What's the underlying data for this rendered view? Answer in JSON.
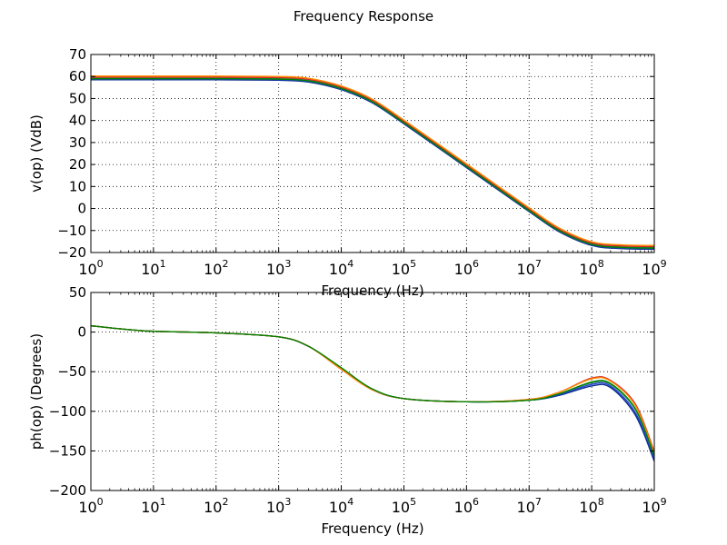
{
  "figure": {
    "title": "Frequency Response"
  },
  "chart_data": [
    {
      "type": "line",
      "title": "",
      "xlabel": "Frequency (Hz)",
      "ylabel": "v(op) (VdB)",
      "xscale": "log",
      "xlim": [
        1,
        1000000000
      ],
      "ylim": [
        -20,
        70
      ],
      "grid": true,
      "xticks": [
        {
          "base": "10",
          "exp": "0"
        },
        {
          "base": "10",
          "exp": "1"
        },
        {
          "base": "10",
          "exp": "2"
        },
        {
          "base": "10",
          "exp": "3"
        },
        {
          "base": "10",
          "exp": "4"
        },
        {
          "base": "10",
          "exp": "5"
        },
        {
          "base": "10",
          "exp": "6"
        },
        {
          "base": "10",
          "exp": "7"
        },
        {
          "base": "10",
          "exp": "8"
        },
        {
          "base": "10",
          "exp": "9"
        }
      ],
      "yticks": [
        "70",
        "60",
        "50",
        "40",
        "30",
        "20",
        "10",
        "0",
        "−10",
        "−20"
      ],
      "x": [
        1,
        10,
        100,
        1000,
        3000,
        10000,
        30000,
        100000,
        1000000,
        10000000,
        30000000,
        100000000,
        300000000,
        1000000000
      ],
      "series": [
        {
          "color": "#0a2a8c",
          "values": [
            58.5,
            58.5,
            58.5,
            58.3,
            57.5,
            54.0,
            48.3,
            38.5,
            18.6,
            -1.4,
            -10.5,
            -16.8,
            -18.2,
            -18.5
          ]
        },
        {
          "color": "#1f3fd1",
          "values": [
            58.8,
            58.8,
            58.8,
            58.6,
            57.8,
            54.3,
            48.6,
            38.8,
            18.9,
            -1.1,
            -10.2,
            -16.5,
            -17.9,
            -18.2
          ]
        },
        {
          "color": "#2e8b57",
          "values": [
            59.2,
            59.2,
            59.2,
            59.0,
            58.2,
            54.7,
            49.0,
            39.2,
            19.3,
            -0.7,
            -9.8,
            -16.1,
            -17.5,
            -17.8
          ]
        },
        {
          "color": "#d62728",
          "values": [
            59.7,
            59.7,
            59.7,
            59.5,
            58.7,
            55.2,
            49.5,
            39.7,
            19.8,
            -0.2,
            -9.3,
            -15.6,
            -17.0,
            -17.3
          ]
        },
        {
          "color": "#ff8c00",
          "values": [
            60.2,
            60.2,
            60.2,
            60.0,
            59.2,
            55.7,
            50.0,
            40.2,
            20.3,
            0.3,
            -8.8,
            -15.1,
            -16.5,
            -16.8
          ]
        },
        {
          "color": "#008000",
          "values": [
            59.0,
            59.0,
            59.0,
            58.8,
            58.0,
            54.5,
            48.8,
            39.0,
            19.1,
            -0.9,
            -10.0,
            -16.3,
            -17.7,
            -18.0
          ]
        }
      ]
    },
    {
      "type": "line",
      "title": "",
      "xlabel": "Frequency (Hz)",
      "ylabel": "ph(op) (Degrees)",
      "xscale": "log",
      "xlim": [
        1,
        1000000000
      ],
      "ylim": [
        -200,
        50
      ],
      "grid": true,
      "xticks": [
        {
          "base": "10",
          "exp": "0"
        },
        {
          "base": "10",
          "exp": "1"
        },
        {
          "base": "10",
          "exp": "2"
        },
        {
          "base": "10",
          "exp": "3"
        },
        {
          "base": "10",
          "exp": "4"
        },
        {
          "base": "10",
          "exp": "5"
        },
        {
          "base": "10",
          "exp": "6"
        },
        {
          "base": "10",
          "exp": "7"
        },
        {
          "base": "10",
          "exp": "8"
        },
        {
          "base": "10",
          "exp": "9"
        }
      ],
      "yticks": [
        "50",
        "0",
        "−50",
        "−100",
        "−150",
        "−200"
      ],
      "x": [
        1,
        3,
        10,
        100,
        1000,
        3000,
        10000,
        30000,
        100000,
        1000000,
        10000000,
        30000000,
        100000000,
        200000000,
        500000000,
        1000000000
      ],
      "series": [
        {
          "color": "#0a2a8c",
          "values": [
            8,
            4,
            1,
            -1,
            -6,
            -18,
            -46,
            -72,
            -84,
            -88,
            -86,
            -80,
            -68,
            -70,
            -105,
            -163
          ]
        },
        {
          "color": "#1f3fd1",
          "values": [
            8,
            4,
            1,
            -1,
            -6,
            -18,
            -46,
            -72,
            -84,
            -88,
            -86,
            -79,
            -66,
            -68,
            -102,
            -160
          ]
        },
        {
          "color": "#2e8b57",
          "values": [
            8,
            4,
            1,
            -1,
            -6,
            -18,
            -46,
            -72,
            -84,
            -88,
            -86,
            -78,
            -64,
            -66,
            -98,
            -157
          ]
        },
        {
          "color": "#d62728",
          "values": [
            8,
            4,
            1,
            -1,
            -6,
            -18,
            -47,
            -72,
            -84,
            -88,
            -85,
            -76,
            -58,
            -61,
            -91,
            -151
          ]
        },
        {
          "color": "#ff8c00",
          "values": [
            8,
            4,
            1,
            -1,
            -6,
            -18,
            -47,
            -72,
            -84,
            -88,
            -85,
            -76,
            -59,
            -62,
            -93,
            -153
          ]
        },
        {
          "color": "#008000",
          "values": [
            8,
            4,
            1,
            -1,
            -6,
            -18,
            -45,
            -71,
            -84,
            -88,
            -86,
            -78,
            -63,
            -65,
            -97,
            -156
          ]
        }
      ]
    }
  ]
}
